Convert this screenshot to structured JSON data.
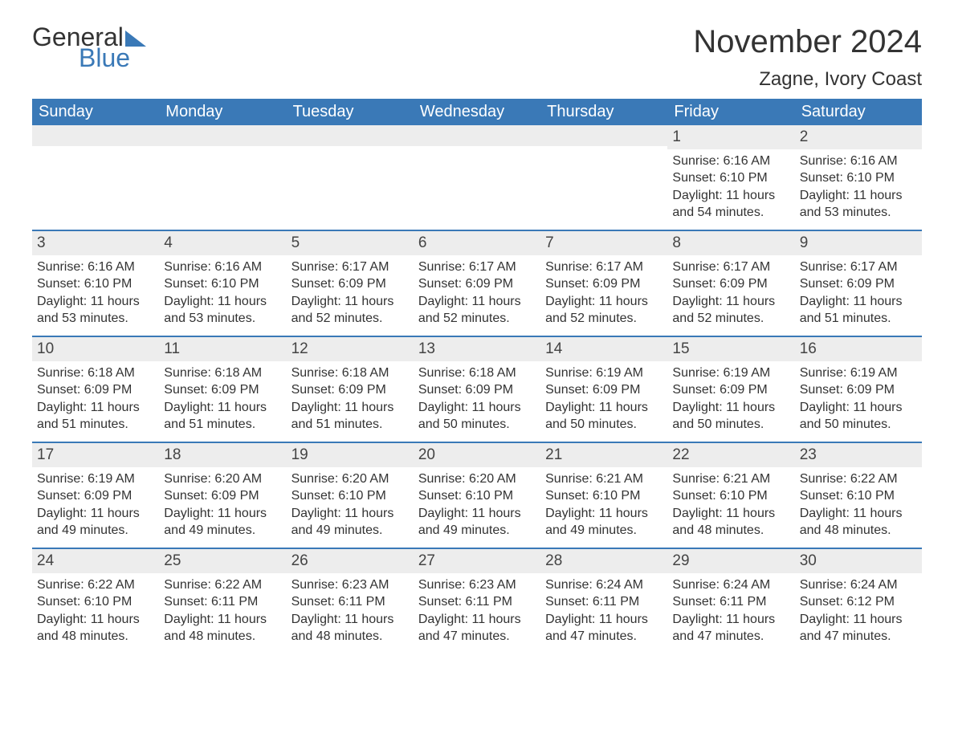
{
  "logo": {
    "text1": "General",
    "text2": "Blue"
  },
  "title": "November 2024",
  "location": "Zagne, Ivory Coast",
  "colors": {
    "header_bg": "#3a79b7",
    "header_text": "#ffffff",
    "row_border": "#3a79b7",
    "daynum_bg": "#ededed",
    "body_text": "#333333",
    "logo_accent": "#3a79b7",
    "page_bg": "#ffffff"
  },
  "typography": {
    "title_fontsize": 40,
    "location_fontsize": 24,
    "dow_fontsize": 20,
    "daynum_fontsize": 19,
    "cell_fontsize": 16
  },
  "days_of_week": [
    "Sunday",
    "Monday",
    "Tuesday",
    "Wednesday",
    "Thursday",
    "Friday",
    "Saturday"
  ],
  "labels": {
    "sunrise": "Sunrise: ",
    "sunset": "Sunset: ",
    "daylight": "Daylight: "
  },
  "weeks": [
    [
      null,
      null,
      null,
      null,
      null,
      {
        "n": "1",
        "sunrise": "6:16 AM",
        "sunset": "6:10 PM",
        "daylight": "11 hours and 54 minutes."
      },
      {
        "n": "2",
        "sunrise": "6:16 AM",
        "sunset": "6:10 PM",
        "daylight": "11 hours and 53 minutes."
      }
    ],
    [
      {
        "n": "3",
        "sunrise": "6:16 AM",
        "sunset": "6:10 PM",
        "daylight": "11 hours and 53 minutes."
      },
      {
        "n": "4",
        "sunrise": "6:16 AM",
        "sunset": "6:10 PM",
        "daylight": "11 hours and 53 minutes."
      },
      {
        "n": "5",
        "sunrise": "6:17 AM",
        "sunset": "6:09 PM",
        "daylight": "11 hours and 52 minutes."
      },
      {
        "n": "6",
        "sunrise": "6:17 AM",
        "sunset": "6:09 PM",
        "daylight": "11 hours and 52 minutes."
      },
      {
        "n": "7",
        "sunrise": "6:17 AM",
        "sunset": "6:09 PM",
        "daylight": "11 hours and 52 minutes."
      },
      {
        "n": "8",
        "sunrise": "6:17 AM",
        "sunset": "6:09 PM",
        "daylight": "11 hours and 52 minutes."
      },
      {
        "n": "9",
        "sunrise": "6:17 AM",
        "sunset": "6:09 PM",
        "daylight": "11 hours and 51 minutes."
      }
    ],
    [
      {
        "n": "10",
        "sunrise": "6:18 AM",
        "sunset": "6:09 PM",
        "daylight": "11 hours and 51 minutes."
      },
      {
        "n": "11",
        "sunrise": "6:18 AM",
        "sunset": "6:09 PM",
        "daylight": "11 hours and 51 minutes."
      },
      {
        "n": "12",
        "sunrise": "6:18 AM",
        "sunset": "6:09 PM",
        "daylight": "11 hours and 51 minutes."
      },
      {
        "n": "13",
        "sunrise": "6:18 AM",
        "sunset": "6:09 PM",
        "daylight": "11 hours and 50 minutes."
      },
      {
        "n": "14",
        "sunrise": "6:19 AM",
        "sunset": "6:09 PM",
        "daylight": "11 hours and 50 minutes."
      },
      {
        "n": "15",
        "sunrise": "6:19 AM",
        "sunset": "6:09 PM",
        "daylight": "11 hours and 50 minutes."
      },
      {
        "n": "16",
        "sunrise": "6:19 AM",
        "sunset": "6:09 PM",
        "daylight": "11 hours and 50 minutes."
      }
    ],
    [
      {
        "n": "17",
        "sunrise": "6:19 AM",
        "sunset": "6:09 PM",
        "daylight": "11 hours and 49 minutes."
      },
      {
        "n": "18",
        "sunrise": "6:20 AM",
        "sunset": "6:09 PM",
        "daylight": "11 hours and 49 minutes."
      },
      {
        "n": "19",
        "sunrise": "6:20 AM",
        "sunset": "6:10 PM",
        "daylight": "11 hours and 49 minutes."
      },
      {
        "n": "20",
        "sunrise": "6:20 AM",
        "sunset": "6:10 PM",
        "daylight": "11 hours and 49 minutes."
      },
      {
        "n": "21",
        "sunrise": "6:21 AM",
        "sunset": "6:10 PM",
        "daylight": "11 hours and 49 minutes."
      },
      {
        "n": "22",
        "sunrise": "6:21 AM",
        "sunset": "6:10 PM",
        "daylight": "11 hours and 48 minutes."
      },
      {
        "n": "23",
        "sunrise": "6:22 AM",
        "sunset": "6:10 PM",
        "daylight": "11 hours and 48 minutes."
      }
    ],
    [
      {
        "n": "24",
        "sunrise": "6:22 AM",
        "sunset": "6:10 PM",
        "daylight": "11 hours and 48 minutes."
      },
      {
        "n": "25",
        "sunrise": "6:22 AM",
        "sunset": "6:11 PM",
        "daylight": "11 hours and 48 minutes."
      },
      {
        "n": "26",
        "sunrise": "6:23 AM",
        "sunset": "6:11 PM",
        "daylight": "11 hours and 48 minutes."
      },
      {
        "n": "27",
        "sunrise": "6:23 AM",
        "sunset": "6:11 PM",
        "daylight": "11 hours and 47 minutes."
      },
      {
        "n": "28",
        "sunrise": "6:24 AM",
        "sunset": "6:11 PM",
        "daylight": "11 hours and 47 minutes."
      },
      {
        "n": "29",
        "sunrise": "6:24 AM",
        "sunset": "6:11 PM",
        "daylight": "11 hours and 47 minutes."
      },
      {
        "n": "30",
        "sunrise": "6:24 AM",
        "sunset": "6:12 PM",
        "daylight": "11 hours and 47 minutes."
      }
    ]
  ]
}
